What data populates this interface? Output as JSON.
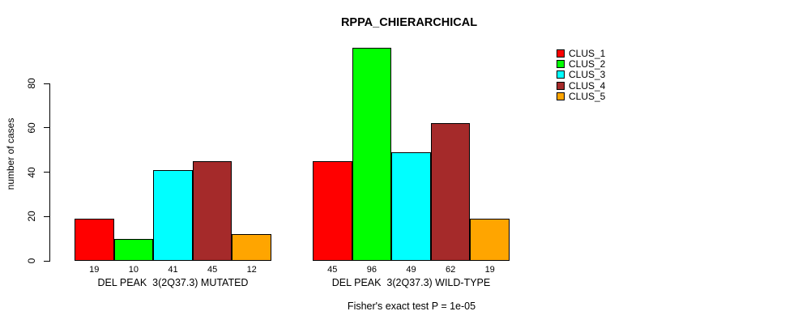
{
  "chart_data": {
    "type": "bar",
    "title": "RPPA_CHIERARCHICAL",
    "ylabel": "number of cases",
    "annotation": "Fisher's exact test P = 1e-05",
    "yticks": [
      0,
      20,
      40,
      60,
      80
    ],
    "ylim": [
      0,
      100
    ],
    "grid": false,
    "legend_position": "top-right",
    "series": [
      "CLUS_1",
      "CLUS_2",
      "CLUS_3",
      "CLUS_4",
      "CLUS_5"
    ],
    "colors": [
      "#FF0000",
      "#00FF00",
      "#00FFFF",
      "#A52A2A",
      "#FFA500"
    ],
    "groups": [
      {
        "label": "DEL PEAK  3(2Q37.3) MUTATED",
        "values": [
          19,
          10,
          41,
          45,
          12
        ]
      },
      {
        "label": "DEL PEAK  3(2Q37.3) WILD-TYPE",
        "values": [
          45,
          96,
          49,
          62,
          19
        ]
      }
    ]
  }
}
